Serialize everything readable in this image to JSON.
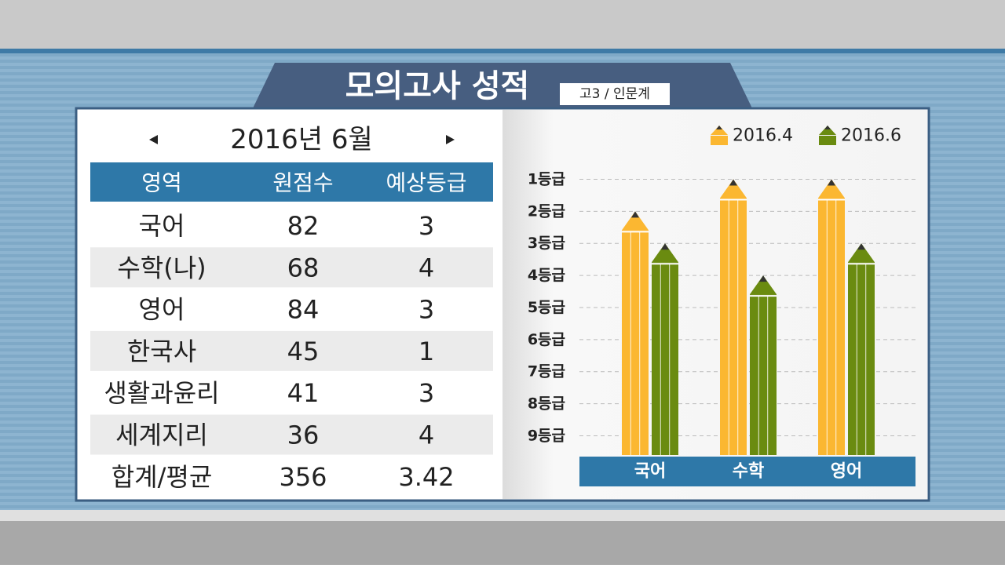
{
  "header": {
    "title": "모의고사 성적",
    "subtitle": "고3 / 인문계"
  },
  "period": "2016년 6월",
  "table": {
    "columns": [
      "영역",
      "원점수",
      "예상등급"
    ],
    "rows": [
      [
        "국어",
        82,
        3
      ],
      [
        "수학(나)",
        68,
        4
      ],
      [
        "영어",
        84,
        3
      ],
      [
        "한국사",
        45,
        1
      ],
      [
        "생활과윤리",
        41,
        3
      ],
      [
        "세계지리",
        36,
        4
      ],
      [
        "합계/평균",
        356,
        3.42
      ]
    ]
  },
  "chart_data": {
    "type": "pencil-bar",
    "categories": [
      "국어",
      "수학",
      "영어"
    ],
    "series": [
      {
        "name": "2016.4",
        "color": "#fbb731",
        "values": [
          2,
          1,
          1
        ]
      },
      {
        "name": "2016.6",
        "color": "#6a8b10",
        "values": [
          3,
          4,
          3
        ]
      }
    ],
    "ylim": [
      9.6,
      0.5
    ],
    "yticks": [
      {
        "value": 1,
        "label": "1등급"
      },
      {
        "value": 2,
        "label": "2등급"
      },
      {
        "value": 3,
        "label": "3등급"
      },
      {
        "value": 4,
        "label": "4등급"
      },
      {
        "value": 5,
        "label": "5등급"
      },
      {
        "value": 6,
        "label": "6등급"
      },
      {
        "value": 7,
        "label": "7등급"
      },
      {
        "value": 8,
        "label": "8등급"
      },
      {
        "value": 9,
        "label": "9등급"
      }
    ],
    "grid": true
  }
}
